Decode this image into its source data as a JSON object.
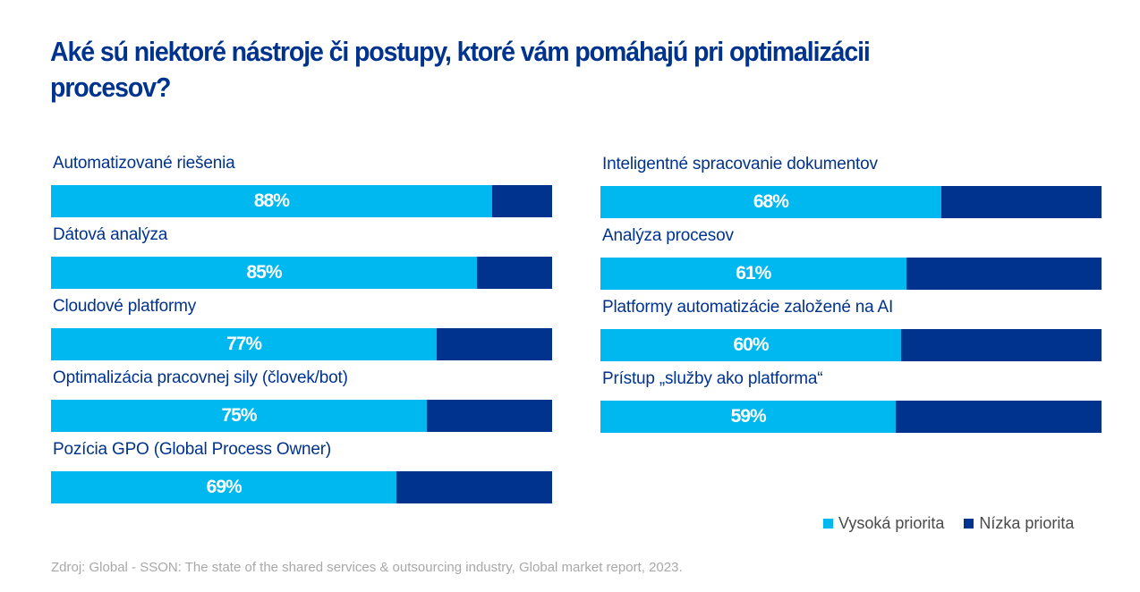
{
  "colors": {
    "high": "#00b8f0",
    "low": "#00338d",
    "title": "#00338d"
  },
  "chart_data": {
    "type": "bar",
    "orientation": "horizontal-stacked-100",
    "title": "Aké sú niektoré nástroje či postupy, ktoré vám pomáhajú pri optimalizácii procesov?",
    "legend": {
      "position": "bottom-right",
      "entries": [
        "Vysoká priorita",
        "Nízka priorita"
      ]
    },
    "xlim": [
      0,
      100
    ],
    "columns": [
      {
        "categories": [
          "Automatizované riešenia",
          "Dátová analýza",
          "Cloudové platformy",
          "Optimalizácia pracovnej sily (človek/bot)",
          "Pozícia GPO (Global Process Owner)"
        ],
        "values": [
          88,
          85,
          77,
          75,
          69
        ],
        "labels": [
          "88%",
          "85%",
          "77%",
          "75%",
          "69%"
        ]
      },
      {
        "categories": [
          "Inteligentné spracovanie dokumentov",
          "Analýza procesov",
          "Platformy automatizácie založené na AI",
          "Prístup „služby ako platforma“"
        ],
        "values": [
          68,
          61,
          60,
          59
        ],
        "labels": [
          "68%",
          "61%",
          "60%",
          "59%"
        ]
      }
    ]
  },
  "source": "Zdroj: Global - SSON: The state of the shared services & outsourcing industry, Global market report, 2023."
}
